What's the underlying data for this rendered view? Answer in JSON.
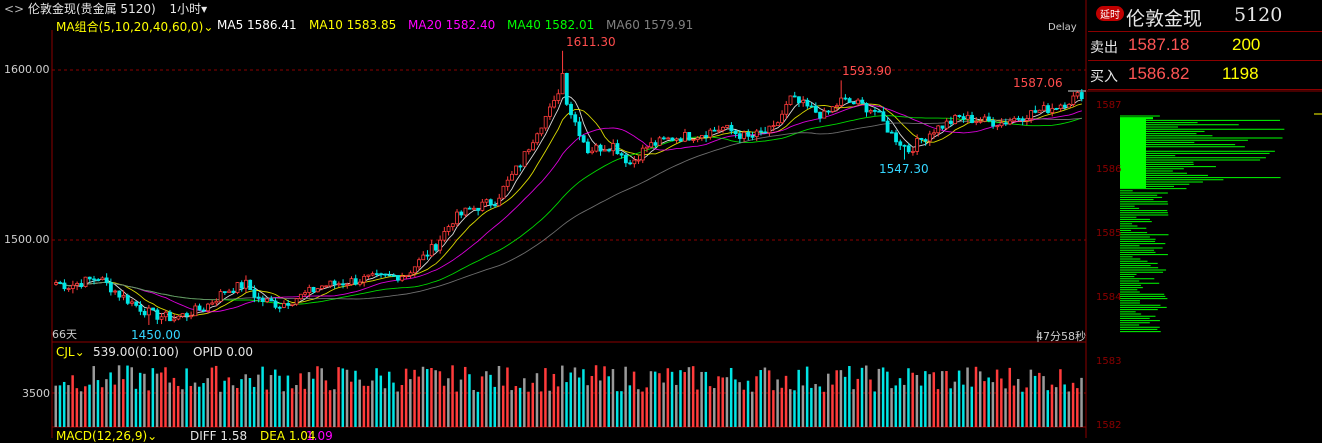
{
  "title": {
    "symbol_label": "伦敦金现(贵金属 5120)",
    "period_label": "1小时",
    "period_arrow": "▾"
  },
  "ma_legend": {
    "combo_label": "MA组合(5,10,20,40,60,0)",
    "items": [
      {
        "label": "MA5 1586.41",
        "color": "#ffffff"
      },
      {
        "label": "MA10 1583.85",
        "color": "#ffff00"
      },
      {
        "label": "MA20 1582.40",
        "color": "#ff00ff"
      },
      {
        "label": "MA40 1582.01",
        "color": "#00ff00"
      },
      {
        "label": "MA60 1579.91",
        "color": "#808080"
      }
    ],
    "delay": "Delay"
  },
  "annotations": {
    "high": "1611.30",
    "high2": "1593.90",
    "last": "1587.06",
    "low": "1450.00",
    "low2": "1547.30",
    "days": "66天",
    "countdown": "47分58秒"
  },
  "y_axis": {
    "ticks": [
      "1600.00",
      "1500.00"
    ]
  },
  "volume": {
    "label": "CJL",
    "value": "539.00(0:100)",
    "opid": "OPID 0.00",
    "tick": "3500"
  },
  "macd": {
    "label": "MACD(12,26,9)",
    "diff": "DIFF 1.58",
    "dea": "DEA 1.04",
    "macd": "1.09"
  },
  "side_panel": {
    "badge": "延时",
    "name": "伦敦金现",
    "code": "5120",
    "sell_label": "卖出",
    "sell_price": "1587.18",
    "sell_qty": "200",
    "buy_label": "买入",
    "buy_price": "1586.82",
    "buy_qty": "1198",
    "price_ticks": [
      "1587",
      "1586",
      "1585",
      "1584",
      "1583",
      "1582"
    ]
  },
  "colors": {
    "up": "#ff3b3b",
    "down": "#00e5e5",
    "grid": "#8b0000",
    "text": "#dddddd",
    "accent_yellow": "#ffff00",
    "profile": "#00ff00"
  },
  "chart_data": {
    "type": "candlestick",
    "y_range": [
      1445,
      1620
    ],
    "ticks": [
      1500,
      1600
    ],
    "waypoints": [
      [
        0,
        1475
      ],
      [
        3,
        1473
      ],
      [
        10,
        1478
      ],
      [
        15,
        1468
      ],
      [
        20,
        1460
      ],
      [
        23,
        1456
      ],
      [
        28,
        1454
      ],
      [
        35,
        1460
      ],
      [
        40,
        1470
      ],
      [
        45,
        1474
      ],
      [
        48,
        1465
      ],
      [
        53,
        1462
      ],
      [
        58,
        1467
      ],
      [
        63,
        1473
      ],
      [
        68,
        1475
      ],
      [
        73,
        1477
      ],
      [
        78,
        1478
      ],
      [
        83,
        1480
      ],
      [
        90,
        1497
      ],
      [
        94,
        1512
      ],
      [
        98,
        1518
      ],
      [
        104,
        1523
      ],
      [
        110,
        1545
      ],
      [
        114,
        1565
      ],
      [
        118,
        1580
      ],
      [
        120,
        1590
      ],
      [
        122,
        1575
      ],
      [
        126,
        1553
      ],
      [
        132,
        1556
      ],
      [
        136,
        1545
      ],
      [
        140,
        1555
      ],
      [
        146,
        1560
      ],
      [
        152,
        1562
      ],
      [
        158,
        1566
      ],
      [
        164,
        1560
      ],
      [
        170,
        1565
      ],
      [
        174,
        1583
      ],
      [
        178,
        1578
      ],
      [
        182,
        1573
      ],
      [
        186,
        1582
      ],
      [
        190,
        1580
      ],
      [
        194,
        1576
      ],
      [
        198,
        1562
      ],
      [
        202,
        1553
      ],
      [
        208,
        1565
      ],
      [
        214,
        1572
      ],
      [
        220,
        1570
      ],
      [
        224,
        1569
      ],
      [
        230,
        1574
      ],
      [
        236,
        1578
      ],
      [
        240,
        1582
      ],
      [
        243,
        1586
      ]
    ]
  }
}
